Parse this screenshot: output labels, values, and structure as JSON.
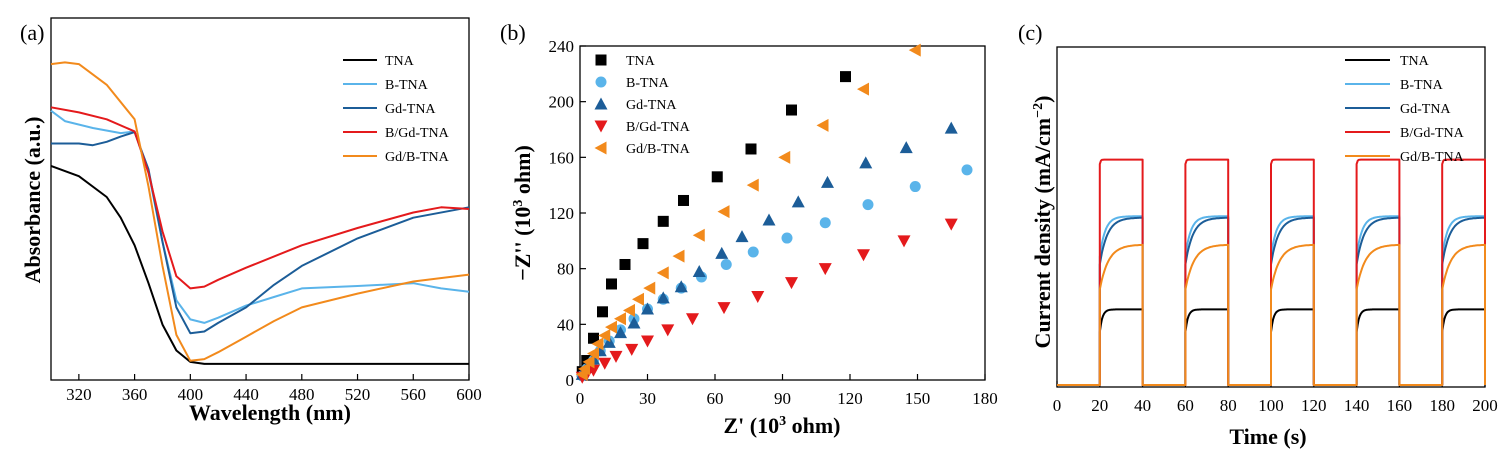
{
  "chart_data": [
    {
      "panel": "(a)",
      "type": "line",
      "xlabel": "Wavelength (nm)",
      "ylabel": "Absorbance (a.u.)",
      "xlim": [
        300,
        600
      ],
      "xticks": [
        320,
        360,
        400,
        440,
        480,
        520,
        560,
        600
      ],
      "legend_position": "top-right",
      "series": [
        {
          "name": "TNA",
          "color": "#000000",
          "points": [
            [
              300,
              0.58
            ],
            [
              320,
              0.55
            ],
            [
              340,
              0.49
            ],
            [
              350,
              0.43
            ],
            [
              360,
              0.35
            ],
            [
              370,
              0.24
            ],
            [
              380,
              0.12
            ],
            [
              390,
              0.045
            ],
            [
              400,
              0.012
            ],
            [
              410,
              0.006
            ],
            [
              440,
              0.006
            ],
            [
              500,
              0.006
            ],
            [
              560,
              0.006
            ],
            [
              600,
              0.006
            ]
          ]
        },
        {
          "name": "B-TNA",
          "color": "#5ab4ea",
          "points": [
            [
              300,
              0.74
            ],
            [
              310,
              0.71
            ],
            [
              330,
              0.69
            ],
            [
              350,
              0.675
            ],
            [
              360,
              0.68
            ],
            [
              370,
              0.56
            ],
            [
              380,
              0.36
            ],
            [
              390,
              0.19
            ],
            [
              400,
              0.135
            ],
            [
              410,
              0.125
            ],
            [
              420,
              0.14
            ],
            [
              440,
              0.175
            ],
            [
              460,
              0.2
            ],
            [
              480,
              0.225
            ],
            [
              520,
              0.232
            ],
            [
              560,
              0.24
            ],
            [
              580,
              0.225
            ],
            [
              600,
              0.215
            ]
          ]
        },
        {
          "name": "Gd-TNA",
          "color": "#1c5d98",
          "points": [
            [
              300,
              0.645
            ],
            [
              320,
              0.645
            ],
            [
              330,
              0.64
            ],
            [
              340,
              0.65
            ],
            [
              350,
              0.665
            ],
            [
              360,
              0.678
            ],
            [
              370,
              0.57
            ],
            [
              380,
              0.36
            ],
            [
              390,
              0.17
            ],
            [
              400,
              0.095
            ],
            [
              410,
              0.1
            ],
            [
              420,
              0.125
            ],
            [
              440,
              0.17
            ],
            [
              460,
              0.235
            ],
            [
              480,
              0.29
            ],
            [
              520,
              0.37
            ],
            [
              560,
              0.43
            ],
            [
              600,
              0.46
            ]
          ]
        },
        {
          "name": "B/Gd-TNA",
          "color": "#e41a1c",
          "points": [
            [
              300,
              0.75
            ],
            [
              320,
              0.735
            ],
            [
              340,
              0.715
            ],
            [
              360,
              0.68
            ],
            [
              370,
              0.56
            ],
            [
              380,
              0.39
            ],
            [
              390,
              0.26
            ],
            [
              400,
              0.225
            ],
            [
              410,
              0.23
            ],
            [
              420,
              0.25
            ],
            [
              440,
              0.285
            ],
            [
              480,
              0.35
            ],
            [
              520,
              0.4
            ],
            [
              560,
              0.445
            ],
            [
              580,
              0.46
            ],
            [
              600,
              0.455
            ]
          ]
        },
        {
          "name": "Gd/B-TNA",
          "color": "#f28a1c",
          "points": [
            [
              300,
              0.875
            ],
            [
              310,
              0.88
            ],
            [
              320,
              0.875
            ],
            [
              340,
              0.815
            ],
            [
              360,
              0.715
            ],
            [
              370,
              0.52
            ],
            [
              380,
              0.29
            ],
            [
              390,
              0.09
            ],
            [
              400,
              0.015
            ],
            [
              410,
              0.02
            ],
            [
              420,
              0.04
            ],
            [
              440,
              0.085
            ],
            [
              460,
              0.13
            ],
            [
              480,
              0.17
            ],
            [
              520,
              0.21
            ],
            [
              560,
              0.245
            ],
            [
              600,
              0.265
            ]
          ]
        }
      ]
    },
    {
      "panel": "(b)",
      "type": "scatter",
      "xlabel": "Z' (10^3 ohm)",
      "ylabel": "−Z'' (10^3 ohm)",
      "xlim": [
        0,
        180
      ],
      "ylim": [
        0,
        240
      ],
      "xticks": [
        0,
        30,
        60,
        90,
        120,
        150,
        180
      ],
      "yticks": [
        0,
        40,
        80,
        120,
        160,
        200,
        240
      ],
      "legend_position": "top-left",
      "series": [
        {
          "name": "TNA",
          "marker": "square",
          "color": "#000000",
          "points": [
            [
              1,
              6
            ],
            [
              3,
              14
            ],
            [
              6,
              30
            ],
            [
              10,
              49
            ],
            [
              14,
              69
            ],
            [
              20,
              83
            ],
            [
              28,
              98
            ],
            [
              37,
              114
            ],
            [
              46,
              129
            ],
            [
              61,
              146
            ],
            [
              76,
              166
            ],
            [
              94,
              194
            ],
            [
              118,
              218
            ]
          ]
        },
        {
          "name": "B-TNA",
          "marker": "circle",
          "color": "#5ab4ea",
          "points": [
            [
              1,
              3
            ],
            [
              3,
              8
            ],
            [
              6,
              14
            ],
            [
              9,
              21
            ],
            [
              13,
              28
            ],
            [
              18,
              36
            ],
            [
              24,
              44
            ],
            [
              30,
              51
            ],
            [
              37,
              58
            ],
            [
              45,
              66
            ],
            [
              54,
              74
            ],
            [
              65,
              83
            ],
            [
              77,
              92
            ],
            [
              92,
              102
            ],
            [
              109,
              113
            ],
            [
              128,
              126
            ],
            [
              149,
              139
            ],
            [
              172,
              151
            ]
          ]
        },
        {
          "name": "Gd-TNA",
          "marker": "triangle-up",
          "color": "#1c5d98",
          "points": [
            [
              1,
              4
            ],
            [
              3,
              9
            ],
            [
              6,
              15
            ],
            [
              9,
              21
            ],
            [
              13,
              27
            ],
            [
              18,
              34
            ],
            [
              24,
              41
            ],
            [
              30,
              51
            ],
            [
              37,
              59
            ],
            [
              45,
              67
            ],
            [
              53,
              78
            ],
            [
              63,
              91
            ],
            [
              72,
              103
            ],
            [
              84,
              115
            ],
            [
              97,
              128
            ],
            [
              110,
              142
            ],
            [
              127,
              156
            ],
            [
              145,
              167
            ],
            [
              165,
              181
            ]
          ]
        },
        {
          "name": "B/Gd-TNA",
          "marker": "triangle-down",
          "color": "#e41a1c",
          "points": [
            [
              1,
              2
            ],
            [
              3,
              4
            ],
            [
              6,
              7
            ],
            [
              11,
              12
            ],
            [
              16,
              17
            ],
            [
              23,
              22
            ],
            [
              30,
              28
            ],
            [
              39,
              36
            ],
            [
              50,
              44
            ],
            [
              64,
              52
            ],
            [
              79,
              60
            ],
            [
              94,
              70
            ],
            [
              109,
              80
            ],
            [
              126,
              90
            ],
            [
              144,
              100
            ],
            [
              165,
              112
            ]
          ]
        },
        {
          "name": "Gd/B-TNA",
          "marker": "triangle-left",
          "color": "#f28a1c",
          "points": [
            [
              1,
              4
            ],
            [
              2,
              8
            ],
            [
              4,
              13
            ],
            [
              6,
              19
            ],
            [
              8,
              26
            ],
            [
              11,
              32
            ],
            [
              14,
              38
            ],
            [
              18,
              44
            ],
            [
              22,
              50
            ],
            [
              26,
              58
            ],
            [
              31,
              66
            ],
            [
              37,
              77
            ],
            [
              44,
              89
            ],
            [
              53,
              104
            ],
            [
              64,
              121
            ],
            [
              77,
              140
            ],
            [
              91,
              160
            ],
            [
              108,
              183
            ],
            [
              126,
              209
            ],
            [
              149,
              237
            ]
          ]
        }
      ]
    },
    {
      "panel": "(c)",
      "type": "line",
      "xlabel": "Time (s)",
      "ylabel": "Current density (mA/cm−2)",
      "xlim": [
        0,
        200
      ],
      "xticks": [
        0,
        20,
        40,
        60,
        80,
        100,
        120,
        140,
        160,
        180,
        200
      ],
      "legend_position": "top-right",
      "light_on_intervals": [
        [
          20,
          40
        ],
        [
          60,
          80
        ],
        [
          100,
          120
        ],
        [
          140,
          160
        ],
        [
          180,
          200
        ]
      ],
      "series": [
        {
          "name": "TNA",
          "color": "#000000",
          "on_level": 0.28,
          "rise": 0.7,
          "tau": 1.2
        },
        {
          "name": "B-TNA",
          "color": "#5ab4ea",
          "on_level": 0.625,
          "rise": 0.76,
          "tau": 2.5
        },
        {
          "name": "Gd-TNA",
          "color": "#1c5d98",
          "on_level": 0.62,
          "rise": 0.72,
          "tau": 3.5
        },
        {
          "name": "B/Gd-TNA",
          "color": "#e41a1c",
          "on_level": 0.835,
          "rise": 0.98,
          "tau": 0.4
        },
        {
          "name": "Gd/B-TNA",
          "color": "#f28a1c",
          "on_level": 0.52,
          "rise": 0.68,
          "tau": 4.0
        }
      ]
    }
  ]
}
